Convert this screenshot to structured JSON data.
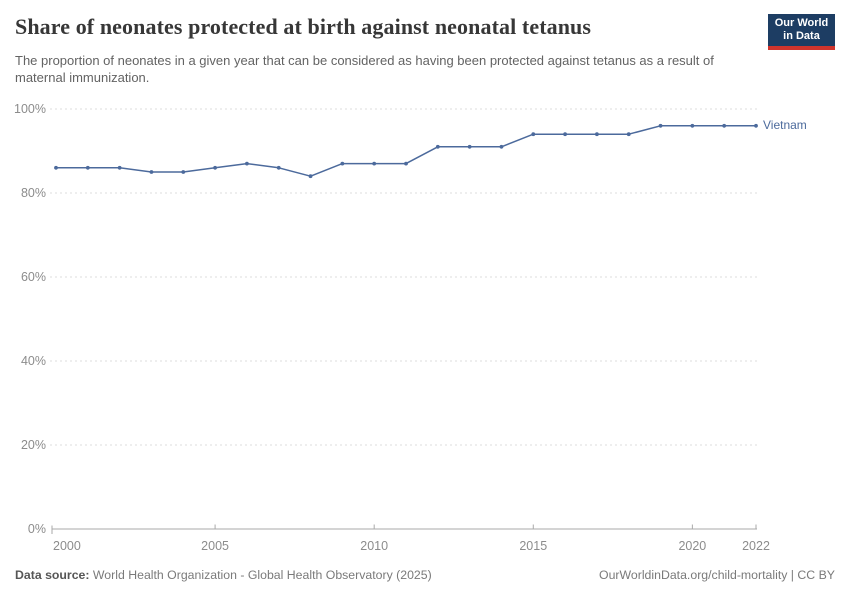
{
  "header": {
    "title": "Share of neonates protected at birth against neonatal tetanus",
    "subtitle": "The proportion of neonates in a given year that can be considered as having been protected against tetanus as a result of maternal immunization.",
    "logo": {
      "line1": "Our World",
      "line2": "in Data"
    }
  },
  "chart_data": {
    "type": "line",
    "title": "Share of neonates protected at birth against neonatal tetanus",
    "xlabel": "",
    "ylabel": "",
    "x": [
      2000,
      2001,
      2002,
      2003,
      2004,
      2005,
      2006,
      2007,
      2008,
      2009,
      2010,
      2011,
      2012,
      2013,
      2014,
      2015,
      2016,
      2017,
      2018,
      2019,
      2020,
      2021,
      2022
    ],
    "series": [
      {
        "name": "Vietnam",
        "color": "#4c6a9c",
        "values": [
          86,
          86,
          86,
          85,
          85,
          86,
          87,
          86,
          84,
          87,
          87,
          87,
          91,
          91,
          91,
          94,
          94,
          94,
          94,
          96,
          96,
          96,
          96
        ]
      }
    ],
    "ylim": [
      0,
      100
    ],
    "y_ticks": [
      0,
      20,
      40,
      60,
      80,
      100
    ],
    "y_tick_labels": [
      "0%",
      "20%",
      "40%",
      "60%",
      "80%",
      "100%"
    ],
    "x_ticks": [
      2000,
      2005,
      2010,
      2015,
      2020,
      2022
    ],
    "x_tick_labels": [
      "2000",
      "2005",
      "2010",
      "2015",
      "2020",
      "2022"
    ],
    "grid": "horizontal dashed gridlines, solid x-axis baseline",
    "legend": "end-of-line label at right of last point"
  },
  "colors": {
    "line": "#4c6a9c",
    "grid": "#dcdcdc",
    "axis": "#a9a9a9",
    "tick_label": "#8c8c8c",
    "title": "#373737",
    "subtitle": "#636363",
    "footer": "#7a7a7a",
    "logo_bg": "#1d3d63",
    "logo_red": "#d0342c"
  },
  "footer": {
    "data_source_label": "Data source:",
    "data_source_value": " World Health Organization - Global Health Observatory (2025)",
    "attribution": "OurWorldinData.org/child-mortality | CC BY"
  }
}
